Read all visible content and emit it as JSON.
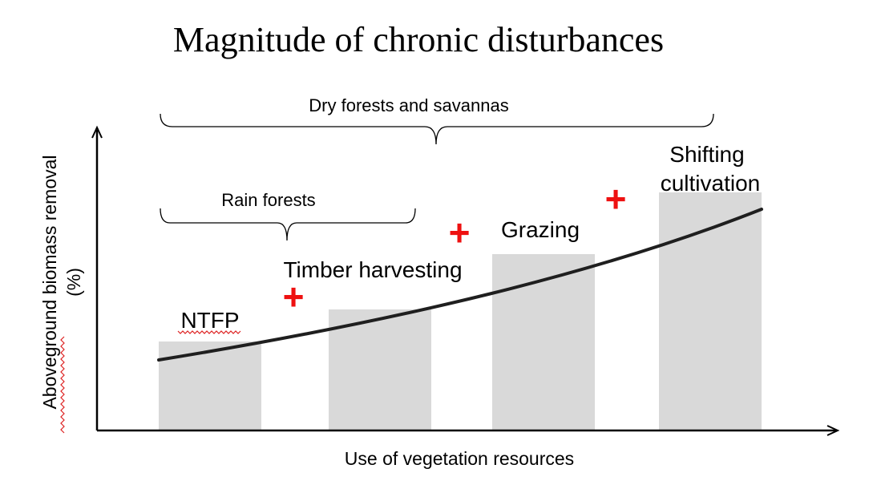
{
  "title": "Magnitude of chronic disturbances",
  "y_axis_label_line1": "Aboveground biomass removal",
  "y_axis_label_line2": "(%)",
  "x_axis_label": "Use of vegetation resources",
  "brackets": {
    "dry_forests": "Dry forests and savannas",
    "rain_forests": "Rain forests"
  },
  "bars": [
    {
      "label": "NTFP",
      "level": 0.2
    },
    {
      "label": "Timber harvesting",
      "level": 0.33
    },
    {
      "label": "Grazing",
      "level": 0.47
    },
    {
      "label": "Shifting cultivation",
      "label_lines": [
        "Shifting",
        "cultivation"
      ],
      "level": 0.63
    }
  ],
  "plus_sign": "+",
  "colors": {
    "bar_fill": "#d9d9d9",
    "plus": "#ee1111",
    "curve": "#1f1f1f",
    "axis": "#000000",
    "spellcheck_underline": "#dd2222"
  }
}
